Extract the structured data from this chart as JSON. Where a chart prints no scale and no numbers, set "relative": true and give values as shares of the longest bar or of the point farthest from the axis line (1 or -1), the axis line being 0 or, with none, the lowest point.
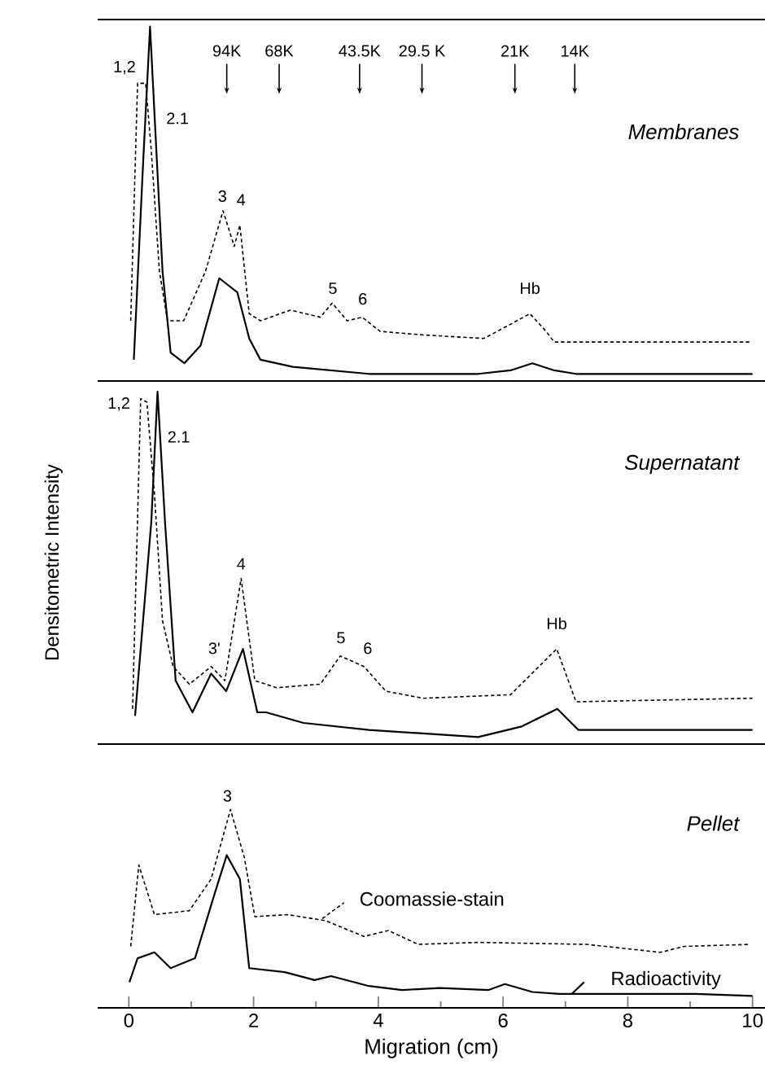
{
  "chart_data": [
    {
      "type": "line",
      "relative": true,
      "title": "Membranes",
      "xlim": [
        -0.5,
        10.2
      ],
      "tick_labels": false,
      "series": [
        {
          "color": "#000000",
          "line_style": "dashed",
          "x": [
            0.03,
            0.14,
            0.27,
            0.36,
            0.49,
            0.62,
            0.88,
            1.23,
            1.51,
            1.69,
            1.78,
            1.93,
            2.11,
            2.59,
            3.07,
            3.26,
            3.5,
            3.74,
            4.03,
            4.72,
            5.69,
            6.12,
            6.43,
            6.69,
            6.82,
            9.96
          ],
          "values": [
            0.17,
            0.84,
            0.84,
            0.65,
            0.31,
            0.17,
            0.17,
            0.31,
            0.48,
            0.38,
            0.44,
            0.19,
            0.17,
            0.2,
            0.18,
            0.22,
            0.17,
            0.18,
            0.14,
            0.13,
            0.12,
            0.16,
            0.19,
            0.14,
            0.11,
            0.11
          ]
        },
        {
          "color": "#000000",
          "line_style": "solid",
          "x": [
            0.08,
            0.23,
            0.34,
            0.45,
            0.54,
            0.67,
            0.89,
            1.15,
            1.45,
            1.74,
            1.93,
            2.11,
            2.63,
            3.85,
            5.6,
            6.12,
            6.47,
            6.82,
            7.17,
            10.0
          ],
          "values": [
            0.06,
            0.62,
            1.0,
            0.62,
            0.31,
            0.08,
            0.05,
            0.1,
            0.29,
            0.25,
            0.12,
            0.06,
            0.04,
            0.02,
            0.02,
            0.03,
            0.05,
            0.03,
            0.02,
            0.02
          ]
        }
      ],
      "annotations": [
        "1,2",
        "2.1",
        {
          "text": "3",
          "x": 1.5,
          "y": 0.5
        },
        "4",
        {
          "text": "5",
          "x": 3.27,
          "y": 0.24
        },
        "6",
        "Hb",
        "94K",
        "68K",
        "43.5K",
        "29.5 K",
        "21K",
        "14K"
      ]
    },
    {
      "type": "line",
      "relative": true,
      "title": "Supernatant",
      "ylabel": "Densitometric Intensity",
      "xlim": [
        -0.5,
        10.2
      ],
      "tick_labels": false,
      "series": [
        {
          "color": "#000000",
          "line_style": "dashed",
          "x": [
            0.06,
            0.19,
            0.29,
            0.41,
            0.54,
            0.71,
            0.97,
            1.32,
            1.54,
            1.8,
            2.02,
            2.37,
            3.07,
            3.39,
            3.77,
            4.12,
            4.72,
            6.12,
            6.86,
            7.17,
            10.0
          ],
          "values": [
            0.1,
            0.98,
            0.97,
            0.71,
            0.35,
            0.22,
            0.17,
            0.22,
            0.18,
            0.47,
            0.18,
            0.16,
            0.17,
            0.25,
            0.22,
            0.15,
            0.13,
            0.14,
            0.27,
            0.12,
            0.13
          ]
        },
        {
          "color": "#000000",
          "line_style": "solid",
          "x": [
            0.1,
            0.36,
            0.46,
            0.58,
            0.75,
            1.02,
            1.32,
            1.56,
            1.83,
            2.06,
            2.2,
            2.8,
            3.85,
            5.6,
            6.3,
            6.87,
            7.21,
            10.0
          ],
          "values": [
            0.08,
            0.63,
            1.0,
            0.63,
            0.18,
            0.09,
            0.2,
            0.15,
            0.27,
            0.09,
            0.09,
            0.06,
            0.04,
            0.02,
            0.05,
            0.1,
            0.04,
            0.04
          ]
        }
      ],
      "annotations": [
        "1,2",
        "2.1",
        "3'",
        {
          "text": "4",
          "x": 1.8,
          "y": 0.49
        },
        "5",
        "6",
        "Hb"
      ]
    },
    {
      "type": "line",
      "relative": true,
      "title": "Pellet",
      "legend": "right",
      "xlabel": "Migration (cm)",
      "xlim": [
        -0.5,
        10.2
      ],
      "tick_labels": "x",
      "xticks": [
        0,
        {
          "value": 1,
          "label": null
        },
        2,
        {
          "value": 3,
          "label": null
        },
        4,
        {
          "value": 5,
          "label": null
        },
        6,
        {
          "value": 7,
          "label": null
        },
        8,
        {
          "value": 9,
          "label": null
        },
        10
      ],
      "series": [
        {
          "name": "Coomassie-stain",
          "color": "#000000",
          "line_style": "dashed",
          "x": [
            0.03,
            0.16,
            0.41,
            0.97,
            1.32,
            1.63,
            1.85,
            2.02,
            2.54,
            3.15,
            3.77,
            4.16,
            4.64,
            5.6,
            7.34,
            8.52,
            8.91,
            9.96
          ],
          "values": [
            0.31,
            0.72,
            0.47,
            0.49,
            0.65,
            1.0,
            0.76,
            0.46,
            0.47,
            0.44,
            0.36,
            0.39,
            0.32,
            0.33,
            0.32,
            0.28,
            0.31,
            0.32
          ]
        },
        {
          "name": "Radioactivity",
          "color": "#000000",
          "line_style": "solid",
          "x": [
            0.01,
            0.14,
            0.41,
            0.67,
            1.06,
            1.37,
            1.57,
            1.78,
            1.93,
            2.5,
            2.98,
            3.24,
            3.85,
            4.38,
            4.99,
            5.77,
            6.03,
            6.47,
            6.9,
            9.09,
            10.0
          ],
          "values": [
            0.13,
            0.25,
            0.28,
            0.2,
            0.25,
            0.57,
            0.77,
            0.65,
            0.2,
            0.18,
            0.14,
            0.16,
            0.11,
            0.09,
            0.1,
            0.09,
            0.12,
            0.08,
            0.07,
            0.07,
            0.06
          ]
        }
      ],
      "annotations": [
        {
          "text": "3",
          "x": 1.58,
          "y": 1.03
        }
      ]
    }
  ]
}
